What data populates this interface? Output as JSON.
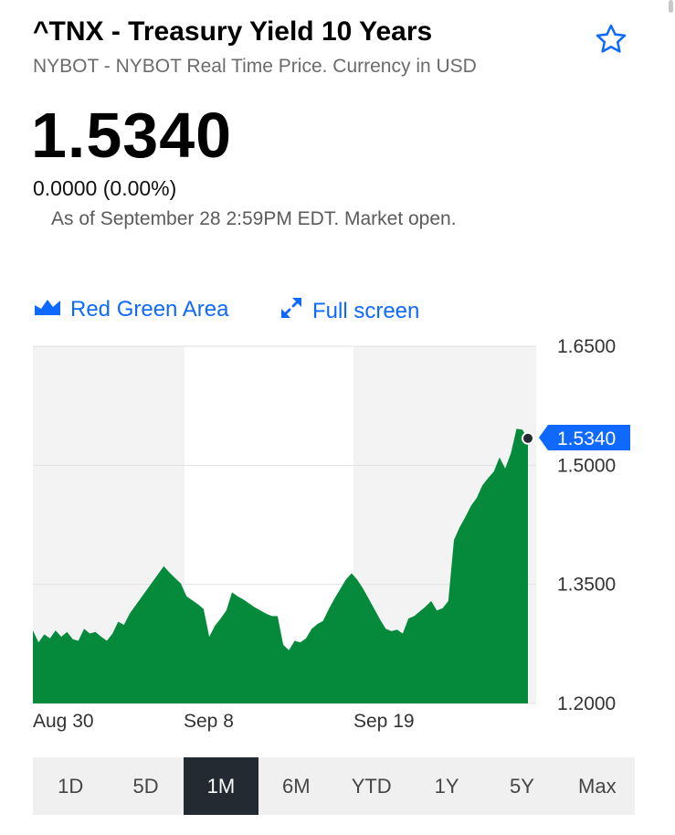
{
  "header": {
    "title": "^TNX - Treasury Yield 10 Years",
    "subtitle": "NYBOT - NYBOT Real Time Price. Currency in USD",
    "star_icon": "star-outline-icon"
  },
  "quote": {
    "price": "1.5340",
    "change": "0.0000 (0.00%)",
    "as_of": "As of September 28 2:59PM EDT. Market open."
  },
  "toolbar": {
    "chart_type_label": "Red Green Area",
    "chart_type_icon": "area-chart-icon",
    "fullscreen_label": "Full screen",
    "fullscreen_icon": "expand-arrows-icon"
  },
  "colors": {
    "accent": "#0f69ff",
    "area_fill": "#058a3c",
    "plot_shade": "#f3f3f3",
    "range_active_bg": "#232a31"
  },
  "chart_data": {
    "type": "area",
    "ylim": [
      1.2,
      1.65
    ],
    "y_ticks": [
      "1.6500",
      "1.5000",
      "1.3500",
      "1.2000"
    ],
    "x_tick_labels": [
      "Aug 30",
      "Sep 8",
      "Sep 19"
    ],
    "current_value_label": "1.5340",
    "grid": true,
    "series": [
      {
        "values": [
          1.292,
          1.277,
          1.287,
          1.282,
          1.292,
          1.284,
          1.29,
          1.281,
          1.279,
          1.294,
          1.288,
          1.29,
          1.284,
          1.279,
          1.288,
          1.303,
          1.299,
          1.313,
          1.323,
          1.333,
          1.343,
          1.353,
          1.363,
          1.373,
          1.365,
          1.358,
          1.351,
          1.335,
          1.33,
          1.325,
          1.319,
          1.284,
          1.298,
          1.307,
          1.317,
          1.34,
          1.335,
          1.331,
          1.326,
          1.321,
          1.317,
          1.313,
          1.31,
          1.31,
          1.274,
          1.267,
          1.279,
          1.277,
          1.282,
          1.294,
          1.3,
          1.304,
          1.319,
          1.332,
          1.344,
          1.356,
          1.364,
          1.356,
          1.345,
          1.332,
          1.319,
          1.306,
          1.294,
          1.291,
          1.293,
          1.288,
          1.307,
          1.31,
          1.316,
          1.322,
          1.329,
          1.317,
          1.32,
          1.329,
          1.406,
          1.422,
          1.435,
          1.449,
          1.459,
          1.475,
          1.484,
          1.492,
          1.51,
          1.496,
          1.515,
          1.546,
          1.545,
          1.534
        ]
      }
    ]
  },
  "range_tabs": [
    {
      "label": "1D",
      "active": false
    },
    {
      "label": "5D",
      "active": false
    },
    {
      "label": "1M",
      "active": true
    },
    {
      "label": "6M",
      "active": false
    },
    {
      "label": "YTD",
      "active": false
    },
    {
      "label": "1Y",
      "active": false
    },
    {
      "label": "5Y",
      "active": false
    },
    {
      "label": "Max",
      "active": false
    }
  ]
}
